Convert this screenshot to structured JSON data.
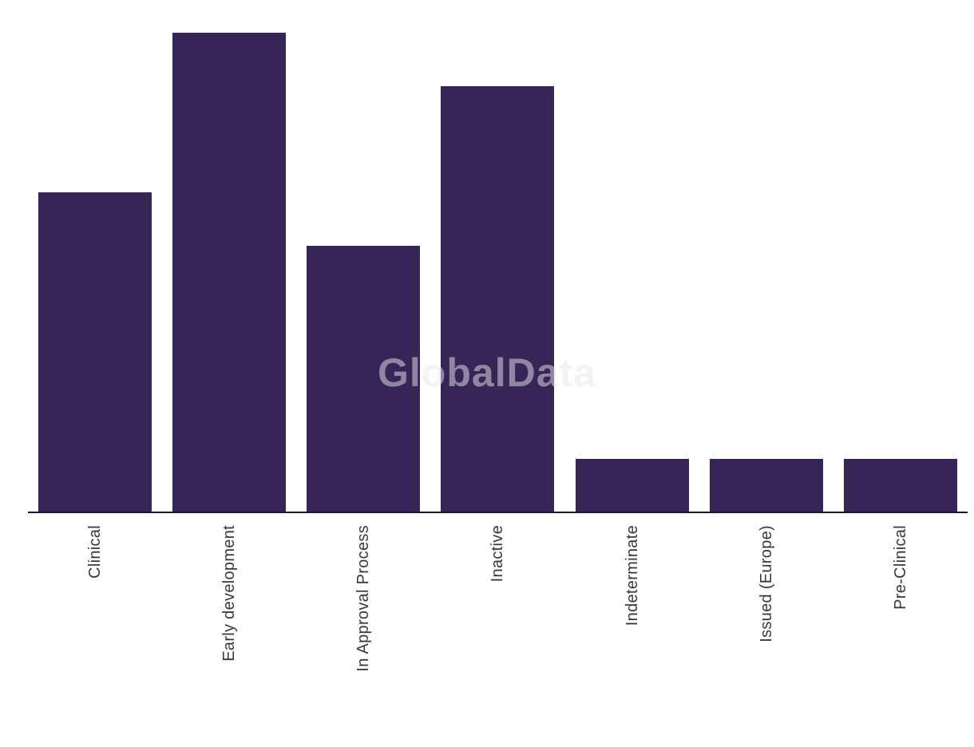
{
  "chart": {
    "watermark": "GlobalData",
    "colors": {
      "bar": "#362556",
      "axis_line": "#1b1831",
      "tick_label": "#383838",
      "watermark": "rgba(231,231,240,0.5)",
      "background": "#ffffff"
    }
  },
  "chart_data": {
    "type": "bar",
    "categories": [
      "Clinical",
      "Early development",
      "In Approval Process",
      "Inactive",
      "Indeterminate",
      "Issued (Europe)",
      "Pre-Clinical"
    ],
    "values": [
      6,
      9,
      5,
      8,
      1,
      1,
      1
    ],
    "title": "",
    "xlabel": "",
    "ylabel": "",
    "ylim": [
      0,
      9
    ],
    "x_tick_rotation": 90,
    "grid": false,
    "legend": "none",
    "y_axis_visible": false
  }
}
